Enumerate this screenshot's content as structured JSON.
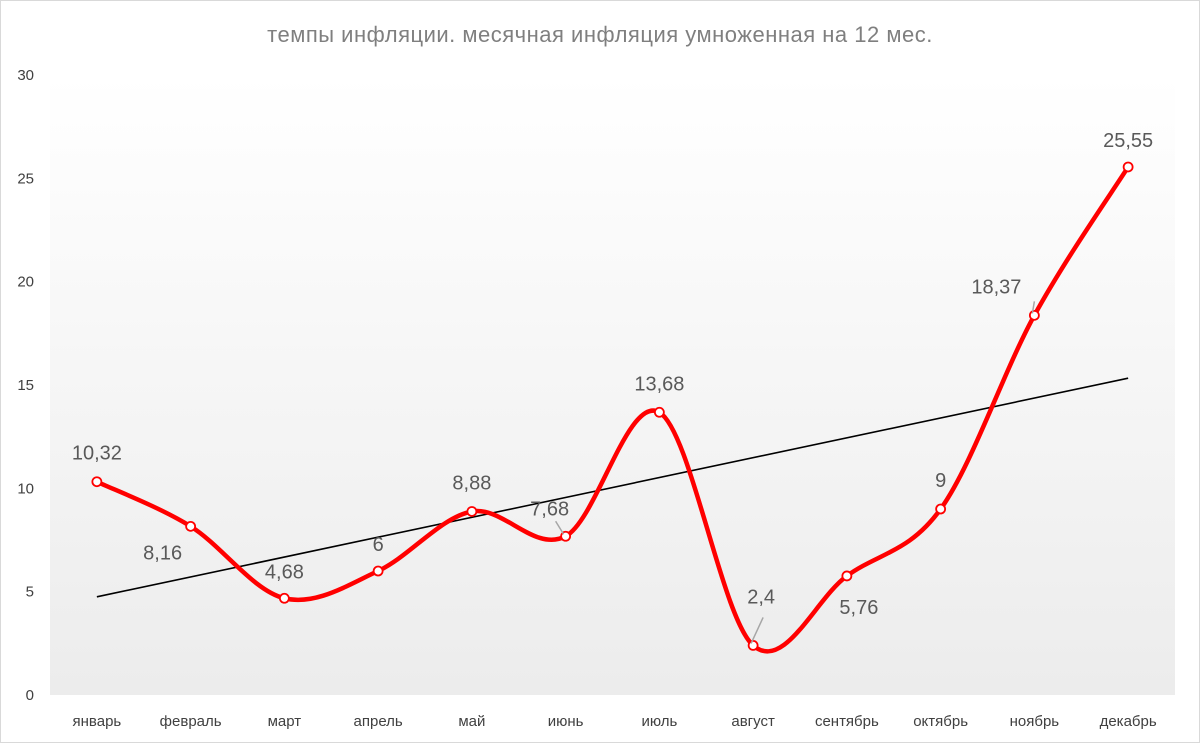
{
  "chart_data": {
    "type": "line",
    "title": "темпы инфляции. месячная инфляция умноженная на 12 мес.",
    "xlabel": "",
    "ylabel": "",
    "categories": [
      "январь",
      "февраль",
      "март",
      "апрель",
      "май",
      "июнь",
      "июль",
      "август",
      "сентябрь",
      "октябрь",
      "ноябрь",
      "декабрь"
    ],
    "values": [
      10.32,
      8.16,
      4.68,
      6,
      8.88,
      7.68,
      13.68,
      2.4,
      5.76,
      9,
      18.37,
      25.55
    ],
    "data_labels": [
      "10,32",
      "8,16",
      "4,68",
      "6",
      "8,88",
      "7,68",
      "13,68",
      "2,4",
      "5,76",
      "9",
      "18,37",
      "25,55"
    ],
    "yticks": [
      0,
      5,
      10,
      15,
      20,
      25,
      30
    ],
    "ylim": [
      0,
      30
    ],
    "trendline": {
      "type": "linear",
      "visible": true,
      "color": "#000000"
    },
    "series_color": "#ff0000",
    "smooth": true,
    "grid": false,
    "legend": "none"
  }
}
